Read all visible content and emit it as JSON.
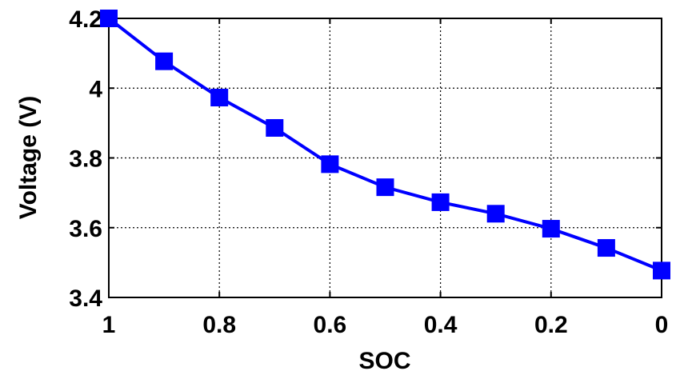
{
  "chart_data": {
    "type": "line",
    "xlabel": "SOC",
    "ylabel": "Voltage (V)",
    "xlim": [
      1,
      0
    ],
    "ylim": [
      3.4,
      4.2
    ],
    "x_reversed": true,
    "grid": true,
    "x_ticks": [
      1,
      0.8,
      0.6,
      0.4,
      0.2,
      0
    ],
    "x_tick_labels": [
      "1",
      "0.8",
      "0.6",
      "0.4",
      "0.2",
      "0"
    ],
    "y_ticks": [
      3.4,
      3.6,
      3.8,
      4.0,
      4.2
    ],
    "y_tick_labels": [
      "3.4",
      "3.6",
      "3.8",
      "4",
      "4.2"
    ],
    "series": [
      {
        "color": "#0000ff",
        "marker": "square",
        "x": [
          1,
          0.9,
          0.8,
          0.7,
          0.6,
          0.5,
          0.4,
          0.3,
          0.2,
          0.1,
          0
        ],
        "y": [
          4.2,
          4.077,
          3.973,
          3.886,
          3.782,
          3.716,
          3.673,
          3.64,
          3.597,
          3.542,
          3.477
        ]
      }
    ]
  }
}
